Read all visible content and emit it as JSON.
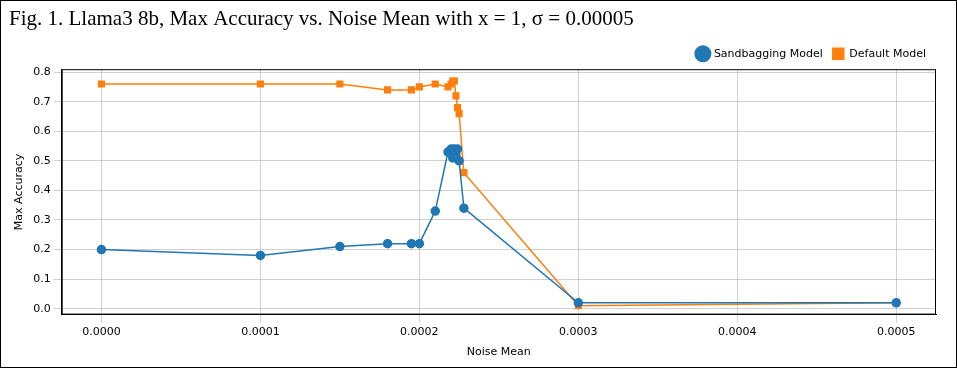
{
  "chart_data": {
    "type": "line",
    "title": "Fig. 1. Llama3 8b, Max Accuracy vs. Noise Mean with x = 1, σ = 0.00005",
    "x_label": "Noise Mean",
    "y_label": "Max Accuracy",
    "x": [
      0,
      0.0001,
      0.00015,
      0.00018,
      0.000195,
      0.0002,
      0.00021,
      0.000218,
      0.00022,
      0.000221,
      0.000222,
      0.000223,
      0.000224,
      0.000225,
      0.000228,
      0.0003,
      0.0005
    ],
    "series": [
      {
        "name": "Sandbagging Model",
        "color": "#1f77b4",
        "marker": "circle",
        "line_style": "solid",
        "values": [
          0.2,
          0.18,
          0.21,
          0.22,
          0.22,
          0.22,
          0.33,
          0.53,
          0.54,
          0.51,
          0.54,
          0.52,
          0.54,
          0.5,
          0.34,
          0.02,
          0.02
        ]
      },
      {
        "name": "Default Model",
        "color": "#ff7f0e",
        "marker": "square",
        "line_style": "solid",
        "values": [
          0.76,
          0.76,
          0.76,
          0.74,
          0.74,
          0.75,
          0.76,
          0.75,
          0.76,
          0.77,
          0.77,
          0.72,
          0.68,
          0.66,
          0.46,
          0.01,
          0.02
        ]
      }
    ],
    "xlim": [
      -2.5e-05,
      0.000525
    ],
    "xticks": [
      {
        "value": 0,
        "label": "0.0000"
      },
      {
        "value": 0.0001,
        "label": "0.0001"
      },
      {
        "value": 0.0002,
        "label": "0.0002"
      },
      {
        "value": 0.0003,
        "label": "0.0003"
      },
      {
        "value": 0.0004,
        "label": "0.0004"
      },
      {
        "value": 0.0005,
        "label": "0.0005"
      }
    ],
    "ylim": [
      -0.02,
      0.81
    ],
    "yticks": [
      {
        "value": 0,
        "label": "0.0"
      },
      0.1,
      0.2,
      0.3,
      0.4,
      0.5,
      0.6,
      0.7,
      0.8
    ],
    "grid": true,
    "legend": "upper right"
  }
}
